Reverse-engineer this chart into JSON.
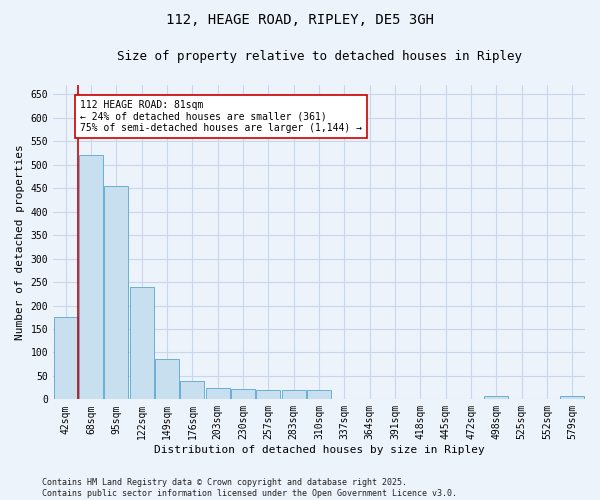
{
  "title": "112, HEAGE ROAD, RIPLEY, DE5 3GH",
  "subtitle": "Size of property relative to detached houses in Ripley",
  "xlabel": "Distribution of detached houses by size in Ripley",
  "ylabel": "Number of detached properties",
  "bar_categories": [
    "42sqm",
    "68sqm",
    "95sqm",
    "122sqm",
    "149sqm",
    "176sqm",
    "203sqm",
    "230sqm",
    "257sqm",
    "283sqm",
    "310sqm",
    "337sqm",
    "364sqm",
    "391sqm",
    "418sqm",
    "445sqm",
    "472sqm",
    "498sqm",
    "525sqm",
    "552sqm",
    "579sqm"
  ],
  "bar_values": [
    175,
    520,
    455,
    240,
    85,
    40,
    25,
    22,
    20,
    20,
    20,
    0,
    0,
    0,
    0,
    0,
    0,
    8,
    0,
    0,
    8
  ],
  "bar_color": "#c8dff0",
  "bar_edge_color": "#6aafd6",
  "red_line_color": "#cc0000",
  "red_line_x": 0.5,
  "annotation_text": "112 HEAGE ROAD: 81sqm\n← 24% of detached houses are smaller (361)\n75% of semi-detached houses are larger (1,144) →",
  "annotation_box_facecolor": "#ffffff",
  "annotation_box_edgecolor": "#cc0000",
  "ylim": [
    0,
    670
  ],
  "yticks": [
    0,
    50,
    100,
    150,
    200,
    250,
    300,
    350,
    400,
    450,
    500,
    550,
    600,
    650
  ],
  "background_color": "#edf3fb",
  "grid_color": "#c8d8ec",
  "footer_text": "Contains HM Land Registry data © Crown copyright and database right 2025.\nContains public sector information licensed under the Open Government Licence v3.0.",
  "title_fontsize": 10,
  "subtitle_fontsize": 9,
  "tick_fontsize": 7,
  "label_fontsize": 8,
  "footer_fontsize": 6,
  "annotation_fontsize": 7
}
